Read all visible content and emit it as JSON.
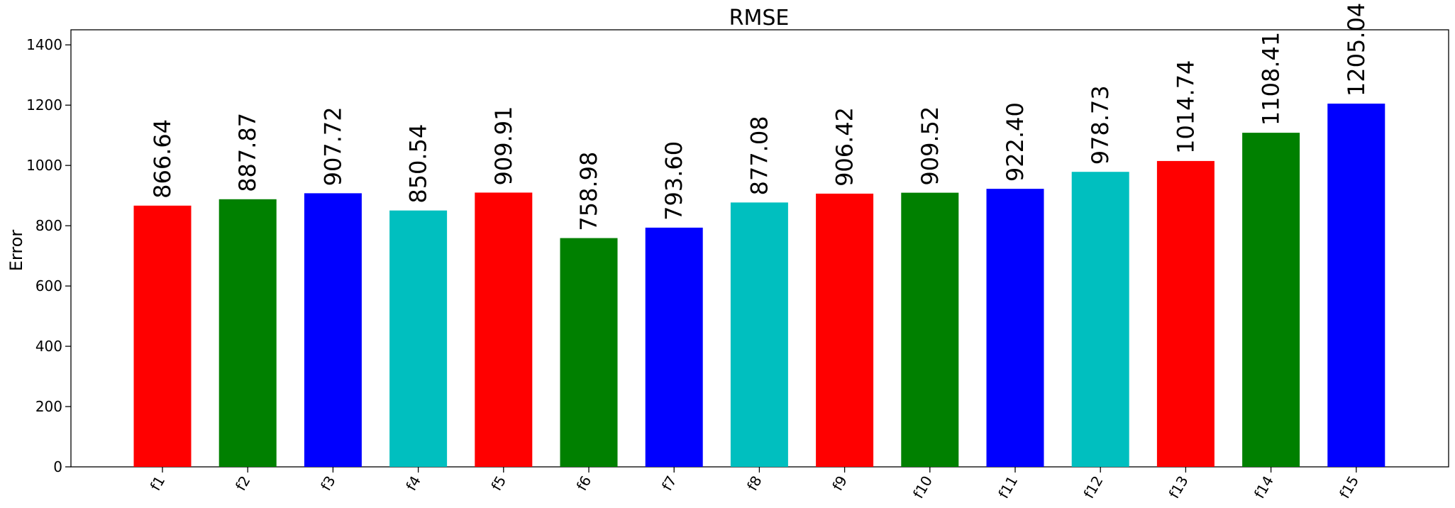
{
  "chart_data": {
    "type": "bar",
    "title": "RMSE",
    "xlabel": "",
    "ylabel": "Error",
    "ylim": [
      0,
      1450
    ],
    "yticks": [
      0,
      200,
      400,
      600,
      800,
      1000,
      1200,
      1400
    ],
    "grid": false,
    "legend": "none",
    "categories": [
      "f1",
      "f2",
      "f3",
      "f4",
      "f5",
      "f6",
      "f7",
      "f8",
      "f9",
      "f10",
      "f11",
      "f12",
      "f13",
      "f14",
      "f15"
    ],
    "values": [
      866.64,
      887.87,
      907.72,
      850.54,
      909.91,
      758.98,
      793.6,
      877.08,
      906.42,
      909.52,
      922.4,
      978.73,
      1014.74,
      1108.41,
      1205.04
    ],
    "value_labels": [
      "866.64",
      "887.87",
      "907.72",
      "850.54",
      "909.91",
      "758.98",
      "793.60",
      "877.08",
      "906.42",
      "909.52",
      "922.40",
      "978.73",
      "1014.74",
      "1108.41",
      "1205.04"
    ],
    "colors": [
      "#ff0000",
      "#008000",
      "#0000ff",
      "#00bfbf",
      "#ff0000",
      "#008000",
      "#0000ff",
      "#00bfbf",
      "#ff0000",
      "#008000",
      "#0000ff",
      "#00bfbf",
      "#ff0000",
      "#008000",
      "#0000ff"
    ]
  }
}
